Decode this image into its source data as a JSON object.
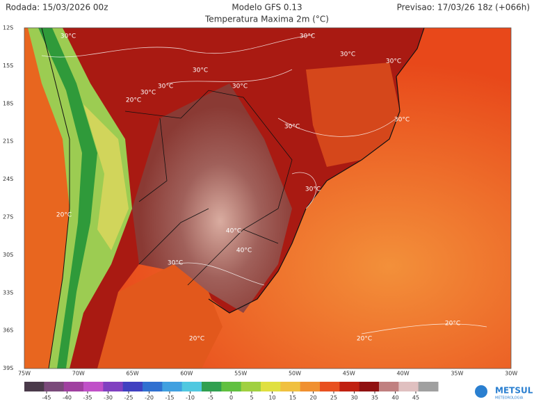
{
  "header": {
    "run": "Rodada: 15/03/2026 00z",
    "model": "Modelo GFS 0.13",
    "forecast": "Previsao: 17/03/26 18z (+066h)",
    "variable": "Temperatura Maxima 2m (°C)"
  },
  "map": {
    "latitude_labels": [
      "12S",
      "15S",
      "18S",
      "21S",
      "24S",
      "27S",
      "30S",
      "33S",
      "36S",
      "39S"
    ],
    "longitude_labels": [
      "75W",
      "70W",
      "65W",
      "60W",
      "55W",
      "50W",
      "45W",
      "40W",
      "35W",
      "30W"
    ],
    "contour_labels": [
      "30°C",
      "30°C",
      "30°C",
      "30°C",
      "30°C",
      "30°C",
      "30°C",
      "30°C",
      "30°C",
      "30°C",
      "30°C",
      "30°C",
      "40°C",
      "40°C",
      "20°C",
      "20°C",
      "20°C",
      "20°C",
      "20°C"
    ]
  },
  "colorbar": {
    "ticks": [
      -45,
      -40,
      -35,
      -30,
      -25,
      -20,
      -15,
      -10,
      -5,
      0,
      5,
      10,
      15,
      20,
      25,
      30,
      35,
      40,
      45
    ]
  },
  "logo": {
    "name": "METSUL",
    "tagline": "METEOROLOGIA"
  }
}
